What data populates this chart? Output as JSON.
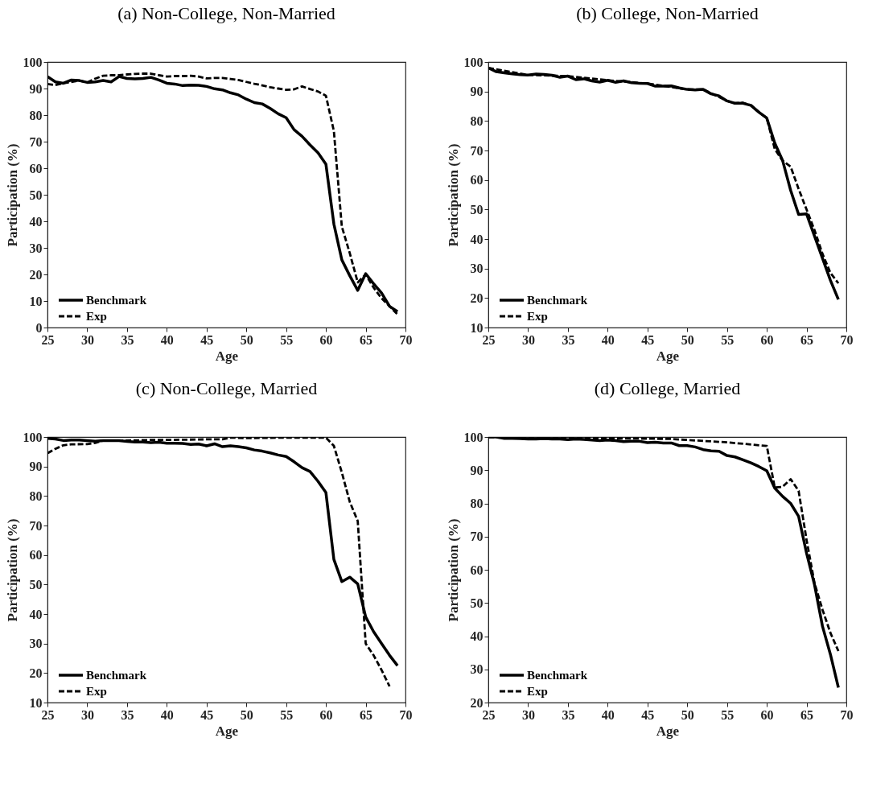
{
  "chart_data": [
    {
      "type": "line",
      "title": "(a) Non-College, Non-Married",
      "xlabel": "Age",
      "ylabel": "Participation (%)",
      "xlim": [
        25,
        70
      ],
      "xticks": [
        25,
        30,
        35,
        40,
        45,
        50,
        55,
        60,
        65,
        70
      ],
      "ylim": [
        0,
        100
      ],
      "yticks": [
        0,
        10,
        20,
        30,
        40,
        50,
        60,
        70,
        80,
        90,
        100
      ],
      "grid": false,
      "legend": "bottom left",
      "series": [
        {
          "name": "Benchmark",
          "color": "#000000",
          "line_style": "solid",
          "x": [
            25,
            26,
            27,
            28,
            29,
            30,
            31,
            32,
            33,
            34,
            35,
            36,
            37,
            38,
            39,
            40,
            41,
            42,
            43,
            44,
            45,
            46,
            47,
            48,
            49,
            50,
            51,
            52,
            53,
            54,
            55,
            56,
            57,
            58,
            59,
            60,
            61,
            62,
            63,
            64,
            65,
            66,
            67,
            68,
            69
          ],
          "values": [
            94.5,
            92.5,
            92,
            93.2,
            93,
            92.3,
            92.5,
            93,
            92.5,
            94.5,
            93.8,
            93.6,
            93.8,
            94.2,
            93.2,
            92,
            91.7,
            91.1,
            91.3,
            91.2,
            90.8,
            89.9,
            89.5,
            88.4,
            87.6,
            86,
            84.7,
            84.2,
            82.5,
            80.5,
            79,
            74.5,
            72,
            68.8,
            65.8,
            61.5,
            39,
            25.5,
            19.5,
            14,
            20.3,
            16.5,
            13,
            8,
            6
          ]
        },
        {
          "name": "Exp",
          "color": "#000000",
          "line_style": "dashed",
          "x": [
            25,
            26,
            27,
            28,
            29,
            30,
            31,
            32,
            33,
            34,
            35,
            36,
            37,
            38,
            39,
            40,
            41,
            42,
            43,
            44,
            45,
            46,
            47,
            48,
            49,
            50,
            51,
            52,
            53,
            54,
            55,
            56,
            57,
            58,
            59,
            60,
            61,
            62,
            63,
            64,
            65,
            66,
            67,
            68,
            69
          ],
          "values": [
            91.7,
            91.3,
            92,
            92.5,
            93,
            92.3,
            93.7,
            94.8,
            95,
            95,
            95.3,
            95.5,
            95.6,
            95.6,
            95,
            94.5,
            94.7,
            94.7,
            94.8,
            94.5,
            93.8,
            94,
            94,
            93.6,
            93.2,
            92.5,
            91.8,
            91.2,
            90.5,
            90,
            89.5,
            89.7,
            90.8,
            89.8,
            88.9,
            87.3,
            74,
            38,
            28,
            17,
            20,
            15,
            11,
            8,
            5
          ]
        }
      ]
    },
    {
      "type": "line",
      "title": "(b) College, Non-Married",
      "xlabel": "Age",
      "ylabel": "Participation (%)",
      "xlim": [
        25,
        70
      ],
      "xticks": [
        25,
        30,
        35,
        40,
        45,
        50,
        55,
        60,
        65,
        70
      ],
      "ylim": [
        10,
        100
      ],
      "yticks": [
        10,
        20,
        30,
        40,
        50,
        60,
        70,
        80,
        90,
        100
      ],
      "grid": false,
      "legend": "bottom left",
      "series": [
        {
          "name": "Benchmark",
          "color": "#000000",
          "line_style": "solid",
          "x": [
            25,
            26,
            27,
            28,
            29,
            30,
            31,
            32,
            33,
            34,
            35,
            36,
            37,
            38,
            39,
            40,
            41,
            42,
            43,
            44,
            45,
            46,
            47,
            48,
            49,
            50,
            51,
            52,
            53,
            54,
            55,
            56,
            57,
            58,
            59,
            60,
            61,
            62,
            63,
            64,
            65,
            66,
            67,
            68,
            69
          ],
          "values": [
            98,
            96.7,
            96.3,
            96,
            95.7,
            95.6,
            95.9,
            95.8,
            95.5,
            94.8,
            95.2,
            94,
            94.3,
            93.6,
            93.2,
            93.8,
            93.1,
            93.6,
            93,
            92.8,
            92.7,
            91.8,
            91.8,
            91.9,
            91.2,
            90.7,
            90.5,
            90.7,
            89.2,
            88.5,
            86.8,
            86,
            86,
            85.3,
            83,
            81,
            72.5,
            66.5,
            56.5,
            48.3,
            48.5,
            41,
            33.5,
            26,
            19.5
          ]
        },
        {
          "name": "Exp",
          "color": "#000000",
          "line_style": "dashed",
          "x": [
            25,
            30,
            35,
            40,
            45,
            50,
            52,
            55,
            56,
            57,
            58,
            59,
            60,
            61,
            62,
            63,
            64,
            65,
            66,
            67,
            68,
            69
          ],
          "values": [
            98,
            95.6,
            95.2,
            93.8,
            92.7,
            90.7,
            90.7,
            86.8,
            86,
            86.2,
            85.3,
            83,
            81,
            70.5,
            66.5,
            64.5,
            57,
            50,
            43,
            35,
            28.5,
            25
          ]
        }
      ]
    },
    {
      "type": "line",
      "title": "(c) Non-College, Married",
      "xlabel": "Age",
      "ylabel": "Participation (%)",
      "xlim": [
        25,
        70
      ],
      "xticks": [
        25,
        30,
        35,
        40,
        45,
        50,
        55,
        60,
        65,
        70
      ],
      "ylim": [
        10,
        100
      ],
      "yticks": [
        10,
        20,
        30,
        40,
        50,
        60,
        70,
        80,
        90,
        100
      ],
      "grid": false,
      "legend": "bottom left",
      "series": [
        {
          "name": "Benchmark",
          "color": "#000000",
          "line_style": "solid",
          "x": [
            25,
            26,
            27,
            28,
            29,
            30,
            31,
            32,
            33,
            34,
            35,
            36,
            37,
            38,
            39,
            40,
            41,
            42,
            43,
            44,
            45,
            46,
            47,
            48,
            49,
            50,
            51,
            52,
            53,
            54,
            55,
            56,
            57,
            58,
            59,
            60,
            61,
            62,
            63,
            64,
            65,
            66,
            67,
            68,
            69
          ],
          "values": [
            99.5,
            99.3,
            98.8,
            99,
            99,
            98.8,
            98.6,
            98.8,
            98.8,
            98.8,
            98.5,
            98.3,
            98.3,
            98.1,
            98.2,
            97.9,
            97.9,
            97.8,
            97.5,
            97.6,
            97,
            97.7,
            96.7,
            97,
            96.7,
            96.3,
            95.6,
            95.2,
            94.6,
            93.9,
            93.4,
            91.6,
            89.6,
            88.3,
            85,
            81.2,
            58.5,
            51,
            52.5,
            50.2,
            39,
            34,
            30,
            26,
            22.5
          ]
        },
        {
          "name": "Exp",
          "color": "#000000",
          "line_style": "dashed",
          "x": [
            25,
            26,
            27,
            28,
            30,
            31,
            32,
            35,
            38,
            40,
            45,
            47,
            48,
            50,
            55,
            60,
            61,
            62,
            63,
            64,
            65,
            66,
            67,
            68
          ],
          "values": [
            94.5,
            96,
            97.2,
            97.5,
            97.6,
            98,
            98.8,
            98.8,
            99,
            99,
            99.2,
            99.2,
            99.8,
            99.6,
            99.8,
            99.8,
            97,
            88,
            78,
            71.5,
            30,
            26,
            21,
            15.5
          ]
        }
      ]
    },
    {
      "type": "line",
      "title": "(d) College, Married",
      "xlabel": "Age",
      "ylabel": "Participation (%)",
      "xlim": [
        25,
        70
      ],
      "xticks": [
        25,
        30,
        35,
        40,
        45,
        50,
        55,
        60,
        65,
        70
      ],
      "ylim": [
        20,
        100
      ],
      "yticks": [
        20,
        30,
        40,
        50,
        60,
        70,
        80,
        90,
        100
      ],
      "grid": false,
      "legend": "bottom left",
      "series": [
        {
          "name": "Benchmark",
          "color": "#000000",
          "line_style": "solid",
          "x": [
            25,
            26,
            27,
            28,
            29,
            30,
            31,
            32,
            33,
            34,
            35,
            36,
            37,
            38,
            39,
            40,
            41,
            42,
            43,
            44,
            45,
            46,
            47,
            48,
            49,
            50,
            51,
            52,
            53,
            54,
            55,
            56,
            57,
            58,
            59,
            60,
            61,
            62,
            63,
            64,
            65,
            66,
            67,
            68,
            69
          ],
          "values": [
            100,
            100,
            99.6,
            99.6,
            99.5,
            99.4,
            99.4,
            99.5,
            99.4,
            99.4,
            99.2,
            99.4,
            99.3,
            99.1,
            98.9,
            99.1,
            98.9,
            98.6,
            98.7,
            98.7,
            98.3,
            98.4,
            98.2,
            98.2,
            97.4,
            97.4,
            97,
            96.2,
            95.8,
            95.7,
            94.4,
            94,
            93.1,
            92.2,
            91.1,
            89.8,
            84.6,
            82.1,
            80,
            76.1,
            65,
            55.5,
            43,
            34.5,
            24.5
          ]
        },
        {
          "name": "Exp",
          "color": "#000000",
          "line_style": "dashed",
          "x": [
            25,
            28,
            30,
            35,
            40,
            45,
            48,
            50,
            55,
            60,
            61,
            62,
            63,
            64,
            65,
            66,
            67,
            68,
            69
          ],
          "values": [
            100,
            100,
            99.8,
            99.7,
            99.6,
            99.5,
            99.4,
            99.1,
            98.4,
            97.3,
            84.8,
            85,
            87.3,
            83.8,
            69,
            56,
            48,
            41,
            35.5
          ]
        }
      ]
    }
  ]
}
